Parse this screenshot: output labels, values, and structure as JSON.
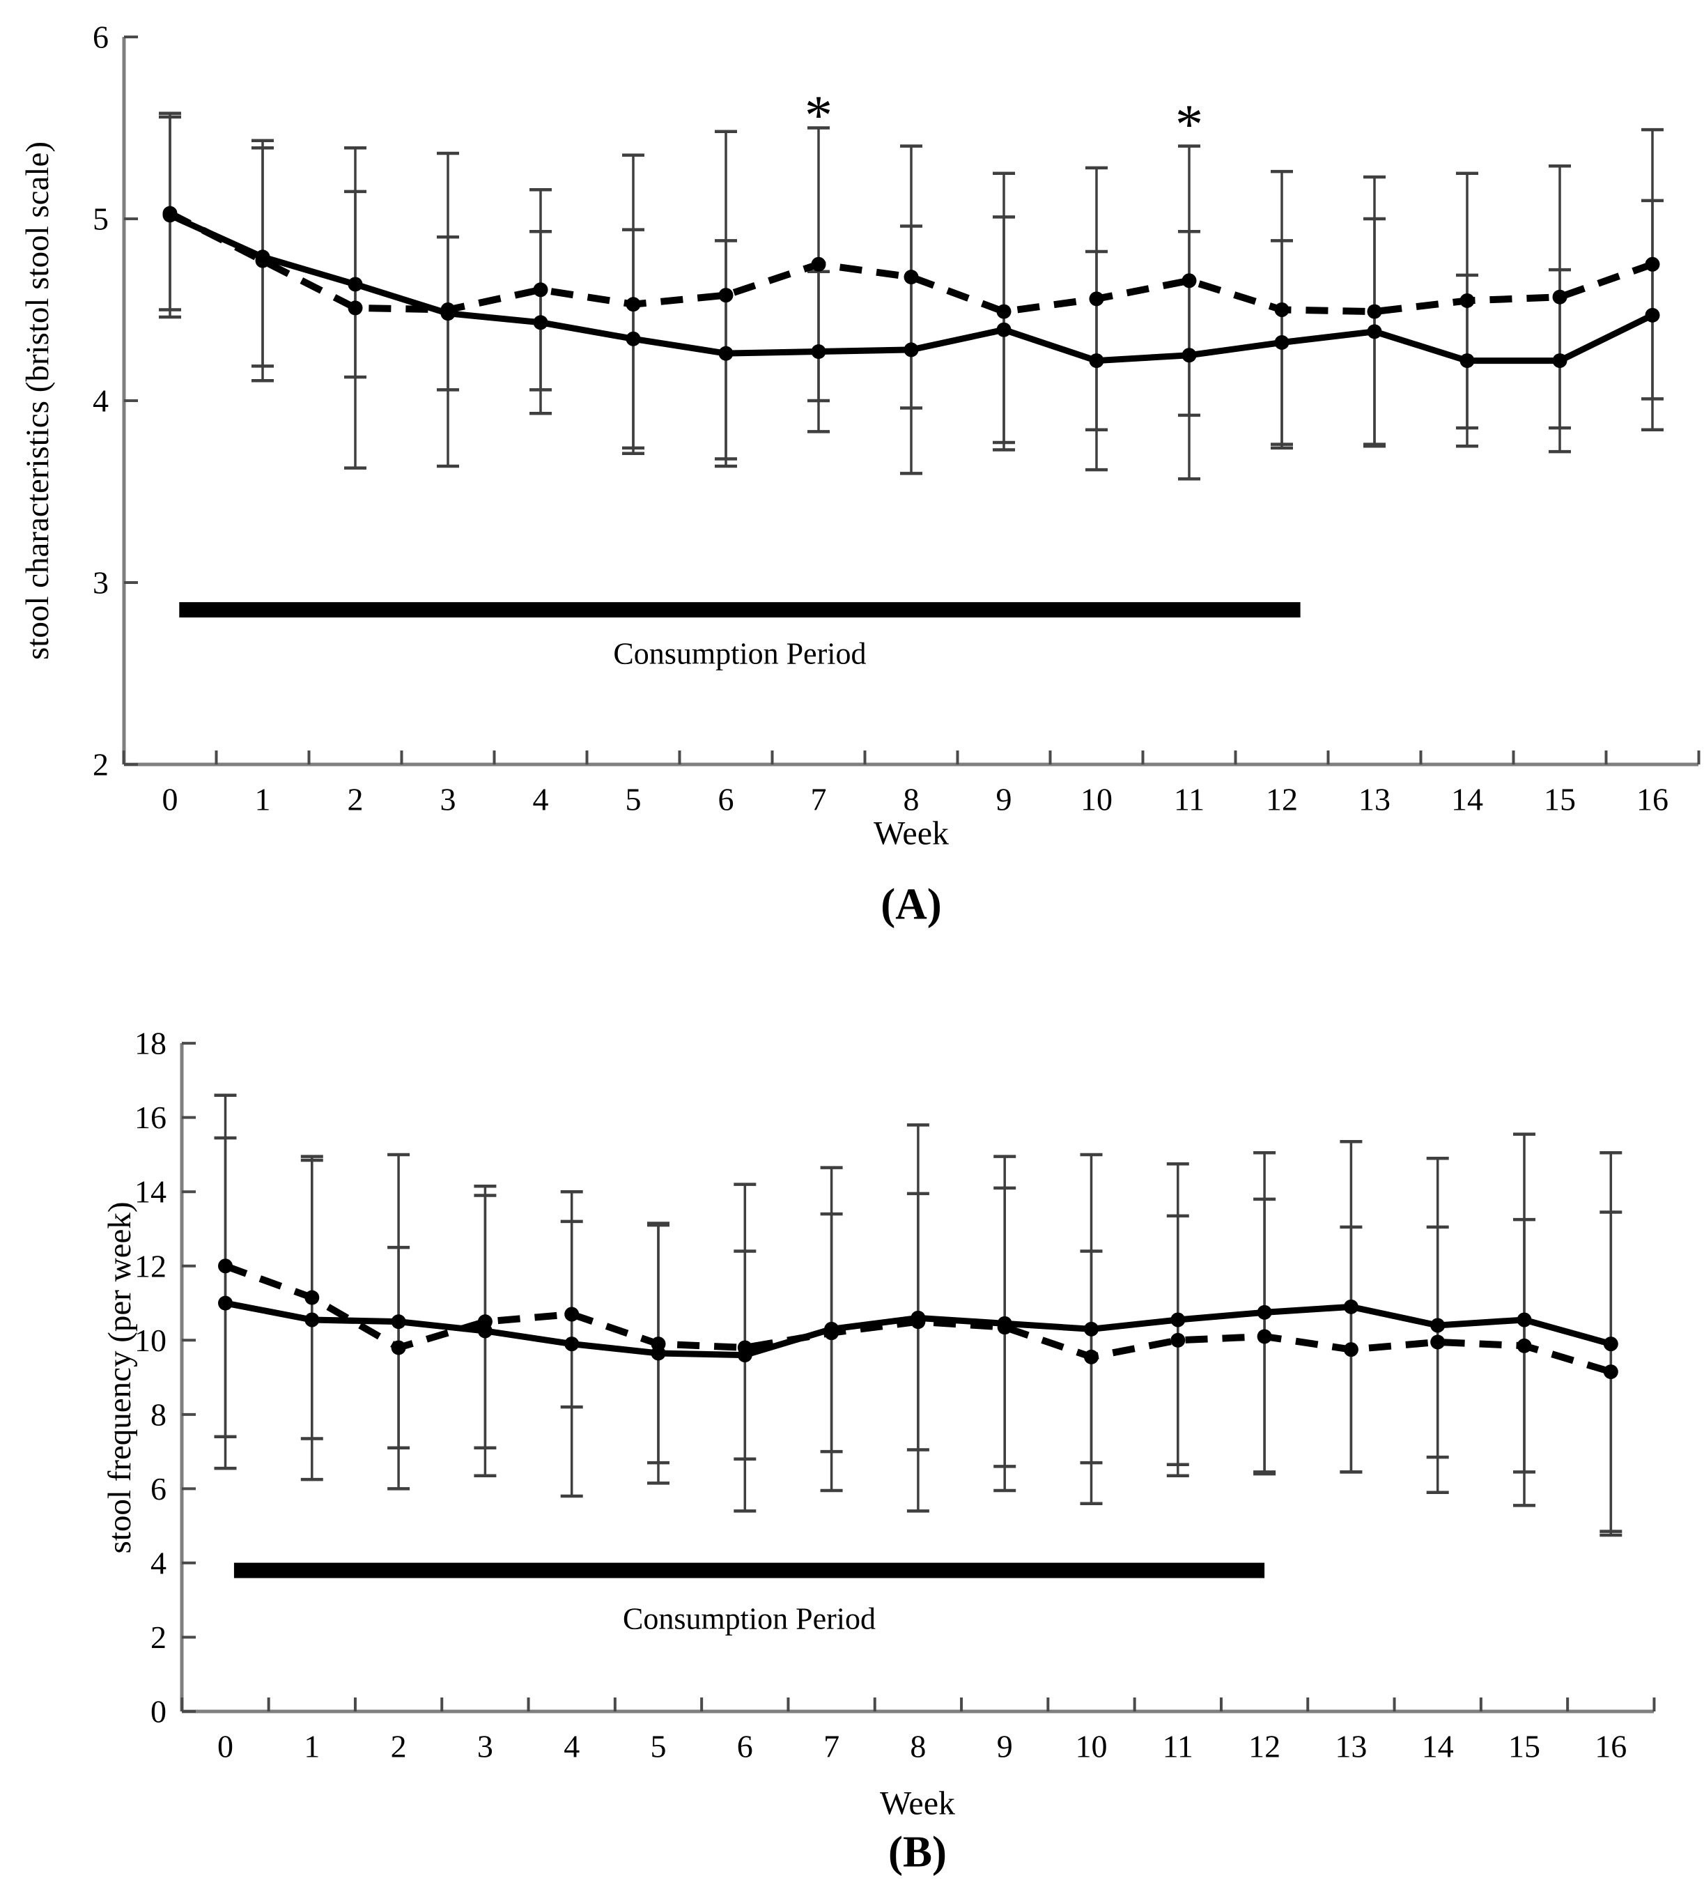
{
  "figure": {
    "background": "#ffffff",
    "text_color": "#000000",
    "axis_color": "#7f7f7f",
    "tick_color": "#4a4a4a",
    "error_bar_color": "#3f3f3f",
    "series_color": "#000000"
  },
  "chart_data": [
    {
      "id": "A",
      "type": "line",
      "caption": "(A)",
      "xlabel": "Week",
      "ylabel": "stool characteristics (bristol stool scale)",
      "ylim": [
        2,
        6
      ],
      "ytick_values": [
        2,
        3,
        4,
        5,
        6
      ],
      "ytick_labels": [
        "2",
        "3",
        "4",
        "5",
        "6"
      ],
      "x": [
        0,
        1,
        2,
        3,
        4,
        5,
        6,
        7,
        8,
        9,
        10,
        11,
        12,
        13,
        14,
        15,
        16
      ],
      "xtick_labels": [
        "0",
        "1",
        "2",
        "3",
        "4",
        "5",
        "6",
        "7",
        "8",
        "9",
        "10",
        "11",
        "12",
        "13",
        "14",
        "15",
        "16"
      ],
      "grid": false,
      "legend_position": "none",
      "series": [
        {
          "name": "solid-circle-series",
          "style": "solid",
          "marker": "filled-circle",
          "values": [
            5.02,
            4.79,
            4.64,
            4.48,
            4.43,
            4.34,
            4.26,
            4.27,
            4.28,
            4.39,
            4.22,
            4.25,
            4.32,
            4.38,
            4.22,
            4.22,
            4.47
          ],
          "sd": [
            0.56,
            0.6,
            0.51,
            0.42,
            0.5,
            0.6,
            0.62,
            0.44,
            0.68,
            0.62,
            0.6,
            0.68,
            0.56,
            0.62,
            0.47,
            0.5,
            0.63
          ]
        },
        {
          "name": "dashed-circle-series",
          "style": "dashed",
          "marker": "filled-circle",
          "values": [
            5.03,
            4.77,
            4.51,
            4.5,
            4.61,
            4.53,
            4.58,
            4.75,
            4.68,
            4.49,
            4.56,
            4.66,
            4.5,
            4.49,
            4.55,
            4.57,
            4.75
          ],
          "sd": [
            0.53,
            0.66,
            0.88,
            0.86,
            0.55,
            0.82,
            0.9,
            0.75,
            0.72,
            0.76,
            0.72,
            0.74,
            0.76,
            0.74,
            0.7,
            0.72,
            0.74
          ]
        }
      ],
      "significance_markers": [
        {
          "week": 7,
          "symbol": "*",
          "y_value": 5.72
        },
        {
          "week": 11,
          "symbol": "*",
          "y_value": 5.67
        }
      ],
      "consumption_period": {
        "label": "Consumption Period",
        "start_week": 0.1,
        "end_week": 12.2,
        "bar_y": 2.85,
        "label_y": 2.61
      }
    },
    {
      "id": "B",
      "type": "line",
      "caption": "(B)",
      "xlabel": "Week",
      "ylabel": "stool frequency (per week)",
      "ylim": [
        0,
        18
      ],
      "ytick_values": [
        0,
        2,
        4,
        6,
        8,
        10,
        12,
        14,
        16,
        18
      ],
      "ytick_labels": [
        "0",
        "2",
        "4",
        "6",
        "8",
        "10",
        "12",
        "14",
        "16",
        "18"
      ],
      "x": [
        0,
        1,
        2,
        3,
        4,
        5,
        6,
        7,
        8,
        9,
        10,
        11,
        12,
        13,
        14,
        15,
        16
      ],
      "xtick_labels": [
        "0",
        "1",
        "2",
        "3",
        "4",
        "5",
        "6",
        "7",
        "8",
        "9",
        "10",
        "11",
        "12",
        "13",
        "14",
        "15",
        "16"
      ],
      "grid": false,
      "legend_position": "none",
      "series": [
        {
          "name": "solid-circle-series",
          "style": "solid",
          "marker": "filled-circle",
          "values": [
            11.0,
            10.55,
            10.5,
            10.25,
            9.9,
            9.65,
            9.6,
            10.3,
            10.6,
            10.45,
            10.3,
            10.55,
            10.75,
            10.9,
            10.4,
            10.55,
            9.9
          ],
          "sd": [
            4.45,
            4.3,
            4.5,
            3.9,
            4.1,
            3.5,
            2.8,
            4.35,
            5.2,
            4.5,
            4.7,
            4.2,
            4.3,
            4.45,
            4.5,
            5.0,
            5.15
          ]
        },
        {
          "name": "dashed-circle-series",
          "style": "dashed",
          "marker": "filled-circle",
          "values": [
            12.0,
            11.15,
            9.8,
            10.5,
            10.7,
            9.9,
            9.8,
            10.2,
            10.5,
            10.35,
            9.55,
            10.0,
            10.1,
            9.75,
            9.95,
            9.85,
            9.15
          ],
          "sd": [
            4.6,
            3.8,
            2.7,
            3.4,
            2.5,
            3.2,
            4.4,
            3.2,
            3.45,
            3.75,
            2.85,
            3.35,
            3.7,
            3.3,
            3.1,
            3.4,
            4.3
          ]
        }
      ],
      "significance_markers": [],
      "consumption_period": {
        "label": "Consumption Period",
        "start_week": 0.1,
        "end_week": 12.0,
        "bar_y": 3.8,
        "label_y": 2.5
      }
    }
  ]
}
